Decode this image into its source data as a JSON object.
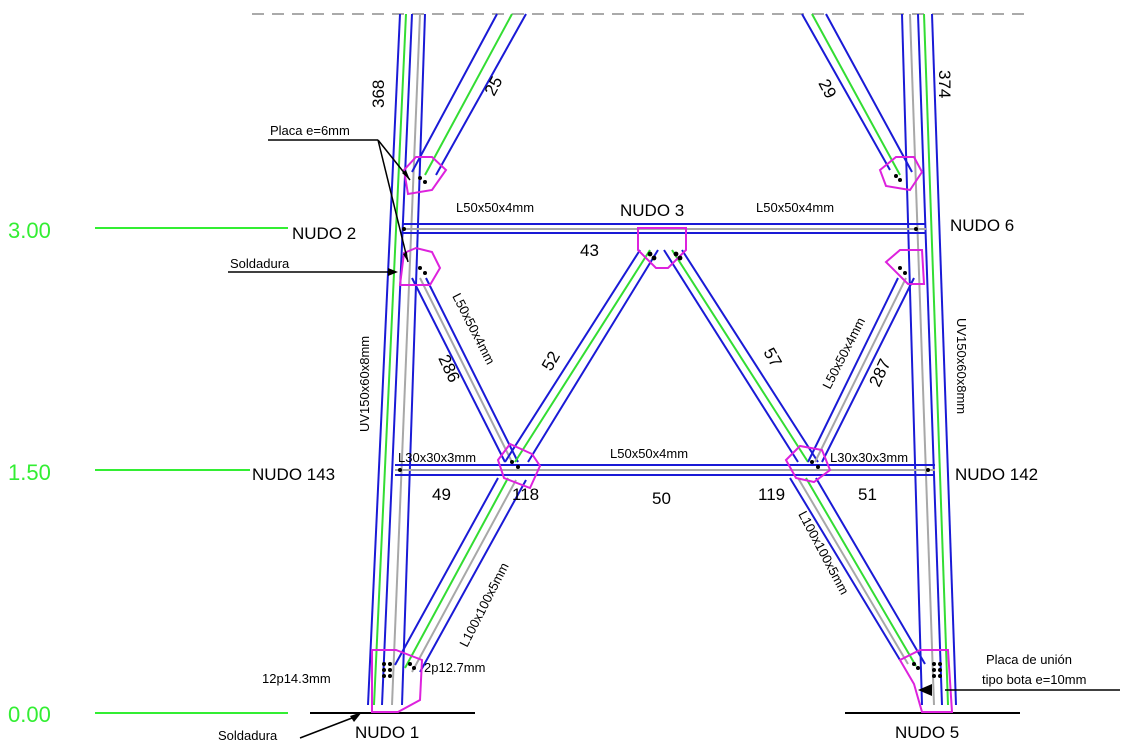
{
  "levels": [
    {
      "value": "3.00"
    },
    {
      "value": "1.50"
    },
    {
      "value": "0.00"
    }
  ],
  "nodes": {
    "n1": "NUDO 1",
    "n2": "NUDO 2",
    "n3": "NUDO 3",
    "n5": "NUDO 5",
    "n6": "NUDO 6",
    "n142": "NUDO 142",
    "n143": "NUDO 143"
  },
  "members": {
    "m368": "368",
    "m25": "25",
    "m29": "29",
    "m374": "374",
    "m43": "43",
    "m286": "286",
    "m52": "52",
    "m57": "57",
    "m287": "287",
    "m49": "49",
    "m118": "118",
    "m50": "50",
    "m119": "119",
    "m51": "51"
  },
  "profiles": {
    "top_left": "L50x50x4mm",
    "top_right": "L50x50x4mm",
    "diag_left": "L50x50x4mm",
    "diag_right": "L50x50x4mm",
    "leg_left": "UV150x60x8mm",
    "leg_right": "UV150x60x8mm",
    "mid_left": "L30x30x3mm",
    "mid_center": "L50x50x4mm",
    "mid_right": "L30x30x3mm",
    "low_left": "L100x100x5mm",
    "low_right": "L100x100x5mm"
  },
  "callouts": {
    "placa": "Placa e=6mm",
    "soldadura_mid": "Soldadura",
    "soldadura_bottom": "Soldadura",
    "bolts_left": "12p14.3mm",
    "bolts_diag": "2p12.7mm",
    "placa_bota_line1": "Placa de unión",
    "placa_bota_line2": "tipo bota e=10mm"
  },
  "colors": {
    "level_line": "#33ee33",
    "member_blue": "#1a1ad6",
    "member_green": "#33dd33",
    "member_gray": "#a8a8a8",
    "plate_magenta": "#dd22dd",
    "cut_line": "#aaaaaa"
  }
}
